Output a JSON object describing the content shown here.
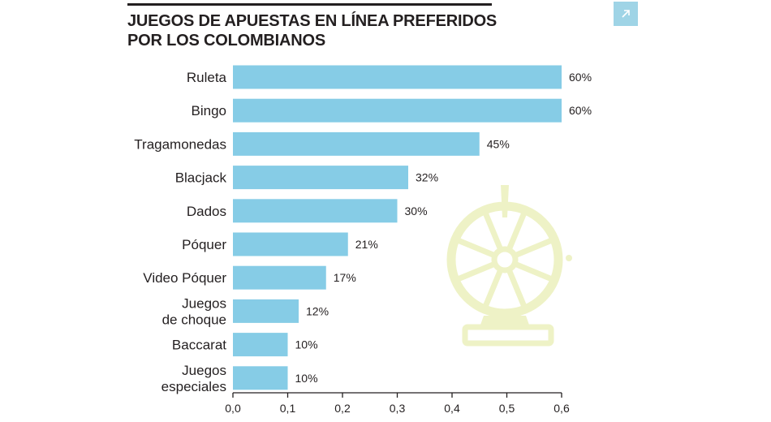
{
  "header": {
    "title_line1": "JUEGOS DE APUESTAS EN LÍNEA PREFERIDOS",
    "title_line2": "POR LOS COLOMBIANOS",
    "expand_icon": "arrow-up-right-icon"
  },
  "colors": {
    "bar": "#86cce6",
    "text": "#231f20",
    "axis": "#231f20",
    "wheel": "#eef2c6",
    "expand_button": "#9fd4e6"
  },
  "chart_data": {
    "type": "bar",
    "orientation": "horizontal",
    "title": "JUEGOS DE APUESTAS EN LÍNEA PREFERIDOS POR LOS COLOMBIANOS",
    "categories": [
      [
        "Ruleta"
      ],
      [
        "Bingo"
      ],
      [
        "Tragamonedas"
      ],
      [
        "Blacjack"
      ],
      [
        "Dados"
      ],
      [
        "Póquer"
      ],
      [
        "Video Póquer"
      ],
      [
        "Juegos",
        "de choque"
      ],
      [
        "Baccarat"
      ],
      [
        "Juegos",
        "especiales"
      ]
    ],
    "values": [
      0.6,
      0.6,
      0.45,
      0.32,
      0.3,
      0.21,
      0.17,
      0.12,
      0.1,
      0.1
    ],
    "data_labels": [
      "60%",
      "60%",
      "45%",
      "32%",
      "30%",
      "21%",
      "17%",
      "12%",
      "10%",
      "10%"
    ],
    "xlim": [
      0,
      0.6
    ],
    "xticks": [
      0,
      0.1,
      0.2,
      0.3,
      0.4,
      0.5,
      0.6
    ],
    "xtick_labels": [
      "0,0",
      "0,1",
      "0,2",
      "0,3",
      "0,4",
      "0,5",
      "0,6"
    ],
    "grid": false,
    "legend": "none",
    "xlabel": "",
    "ylabel": ""
  }
}
